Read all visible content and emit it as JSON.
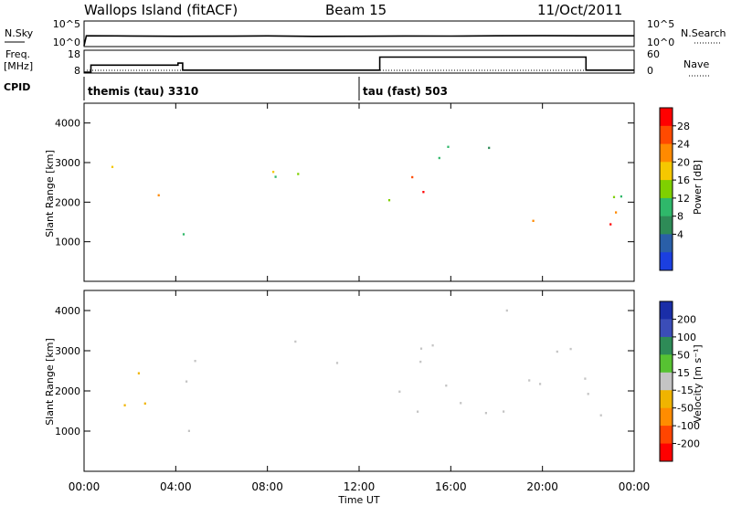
{
  "header": {
    "station": "Wallops Island (fitACF)",
    "beam": "Beam 15",
    "date": "11/Oct/2011"
  },
  "noise_panel": {
    "left_label": "N.Sky",
    "right_label": "N.Search",
    "left_ticks": [
      "10^5",
      "10^0"
    ],
    "right_ticks": [
      "10^5",
      "10^0"
    ]
  },
  "freq_panel": {
    "left_label_line1": "Freq.",
    "left_label_line2": "[MHz]",
    "right_label": "Nave",
    "left_ticks": [
      "18",
      "8"
    ],
    "right_ticks": [
      "60",
      "0"
    ]
  },
  "cpid": {
    "label": "CPID",
    "segments": [
      {
        "name": "themis (tau) 3310",
        "start_hour": 0
      },
      {
        "name": "tau (fast) 503",
        "start_hour": 12
      }
    ]
  },
  "axes": {
    "ylabel": "Slant Range [km]",
    "xlabel": "Time UT",
    "x_ticks": [
      "00:00",
      "04:00",
      "08:00",
      "12:00",
      "16:00",
      "20:00",
      "00:00"
    ],
    "y_ticks": [
      "1000",
      "2000",
      "3000",
      "4000"
    ],
    "power_label": "Power [dB]",
    "velocity_label": "Velocity [m s⁻¹]"
  },
  "power_colorbar": {
    "ticks": [
      "28",
      "24",
      "20",
      "16",
      "12",
      "8",
      "4"
    ],
    "colors": [
      "#ff0000",
      "#ff4a00",
      "#ff8a00",
      "#f5c800",
      "#7fd000",
      "#2fb86a",
      "#2e8b57",
      "#2a5fa8",
      "#1b3fe0"
    ]
  },
  "velocity_colorbar": {
    "ticks": [
      "200",
      "100",
      "50",
      "15",
      "-15",
      "-50",
      "-100",
      "-200"
    ],
    "colors": [
      "#1a2ea8",
      "#3b4db8",
      "#2e8b57",
      "#57c232",
      "#c4c4c4",
      "#f0b400",
      "#ff8c00",
      "#ff4500",
      "#ff0000"
    ]
  },
  "chart_data": [
    {
      "type": "line",
      "name_hint": "noise",
      "x": [
        0,
        0.1,
        2,
        4,
        6,
        8,
        10,
        12,
        14,
        16,
        18,
        20,
        22,
        24
      ],
      "series": [
        {
          "values": [
            1,
            120,
            110,
            95,
            100,
            115,
            90,
            95,
            110,
            105,
            120,
            125,
            118,
            120
          ]
        }
      ],
      "xlim": [
        0,
        24
      ],
      "ylim": [
        1,
        100000
      ],
      "log_scale": true
    },
    {
      "type": "line",
      "name_hint": "frequency",
      "x": [
        0,
        0.3,
        0.3,
        4.1,
        4.1,
        4.3,
        4.3,
        12.9,
        12.9,
        21.9,
        21.9,
        24
      ],
      "series": [
        {
          "values": [
            8,
            8,
            11.5,
            11.5,
            12.5,
            12.5,
            9,
            9,
            15.5,
            15.5,
            9,
            9
          ]
        }
      ],
      "xlim": [
        0,
        24
      ],
      "ylim": [
        8,
        18
      ]
    },
    {
      "type": "heatmap",
      "name_hint": "power",
      "xlim": [
        0,
        24
      ],
      "ylim": [
        0,
        4500
      ],
      "zlim": [
        0,
        30
      ],
      "bands": [
        {
          "t0": 0.3,
          "t1": 1.5,
          "r0": 1500,
          "r1": 2000,
          "p": 20
        },
        {
          "t0": 1.0,
          "t1": 3.0,
          "r0": 2500,
          "r1": 3000,
          "p": 16
        },
        {
          "t0": 2.0,
          "t1": 3.0,
          "r0": 3000,
          "r1": 3500,
          "p": 10
        },
        {
          "t0": 3.0,
          "t1": 9.0,
          "r0": 2200,
          "r1": 2400,
          "p": 26
        },
        {
          "t0": 4.0,
          "t1": 9.5,
          "r0": 2500,
          "r1": 3000,
          "p": 14
        },
        {
          "t0": 3.5,
          "t1": 6.5,
          "r0": 900,
          "r1": 1300,
          "p": 8
        },
        {
          "t0": 9.0,
          "t1": 11.0,
          "r0": 2400,
          "r1": 3400,
          "p": 20
        },
        {
          "t0": 10.0,
          "t1": 11.5,
          "r0": 1000,
          "r1": 1400,
          "p": 10
        },
        {
          "t0": 11.0,
          "t1": 12.5,
          "r0": 1900,
          "r1": 2300,
          "p": 28
        },
        {
          "t0": 12.5,
          "t1": 21.0,
          "r0": 2200,
          "r1": 2700,
          "p": 27
        },
        {
          "t0": 12.0,
          "t1": 24.0,
          "r0": 1300,
          "r1": 1800,
          "p": 26
        },
        {
          "t0": 12.0,
          "t1": 24.0,
          "r0": 1800,
          "r1": 2200,
          "p": 16
        },
        {
          "t0": 14.0,
          "t1": 20.0,
          "r0": 3000,
          "r1": 3800,
          "p": 8
        },
        {
          "t0": 20.0,
          "t1": 22.0,
          "r0": 3800,
          "r1": 4200,
          "p": 18
        },
        {
          "t0": 22.0,
          "t1": 24.0,
          "r0": 1100,
          "r1": 1500,
          "p": 24
        }
      ]
    },
    {
      "type": "heatmap",
      "name_hint": "velocity",
      "xlim": [
        0,
        24
      ],
      "ylim": [
        0,
        4500
      ],
      "zlim": [
        -250,
        250
      ],
      "bands": [
        {
          "t0": 0.3,
          "t1": 3.0,
          "r0": 1500,
          "r1": 3200,
          "v": -60
        },
        {
          "t0": 3.0,
          "t1": 9.0,
          "r0": 2200,
          "r1": 2800,
          "v": 0
        },
        {
          "t0": 3.5,
          "t1": 6.5,
          "r0": 900,
          "r1": 1300,
          "v": -30
        },
        {
          "t0": 9.0,
          "t1": 11.0,
          "r0": 1600,
          "r1": 3400,
          "v": 30
        },
        {
          "t0": 11.0,
          "t1": 24.0,
          "r0": 1200,
          "r1": 2800,
          "v": 0
        },
        {
          "t0": 14.0,
          "t1": 22.0,
          "r0": 3000,
          "r1": 4200,
          "v": 5
        }
      ]
    }
  ]
}
